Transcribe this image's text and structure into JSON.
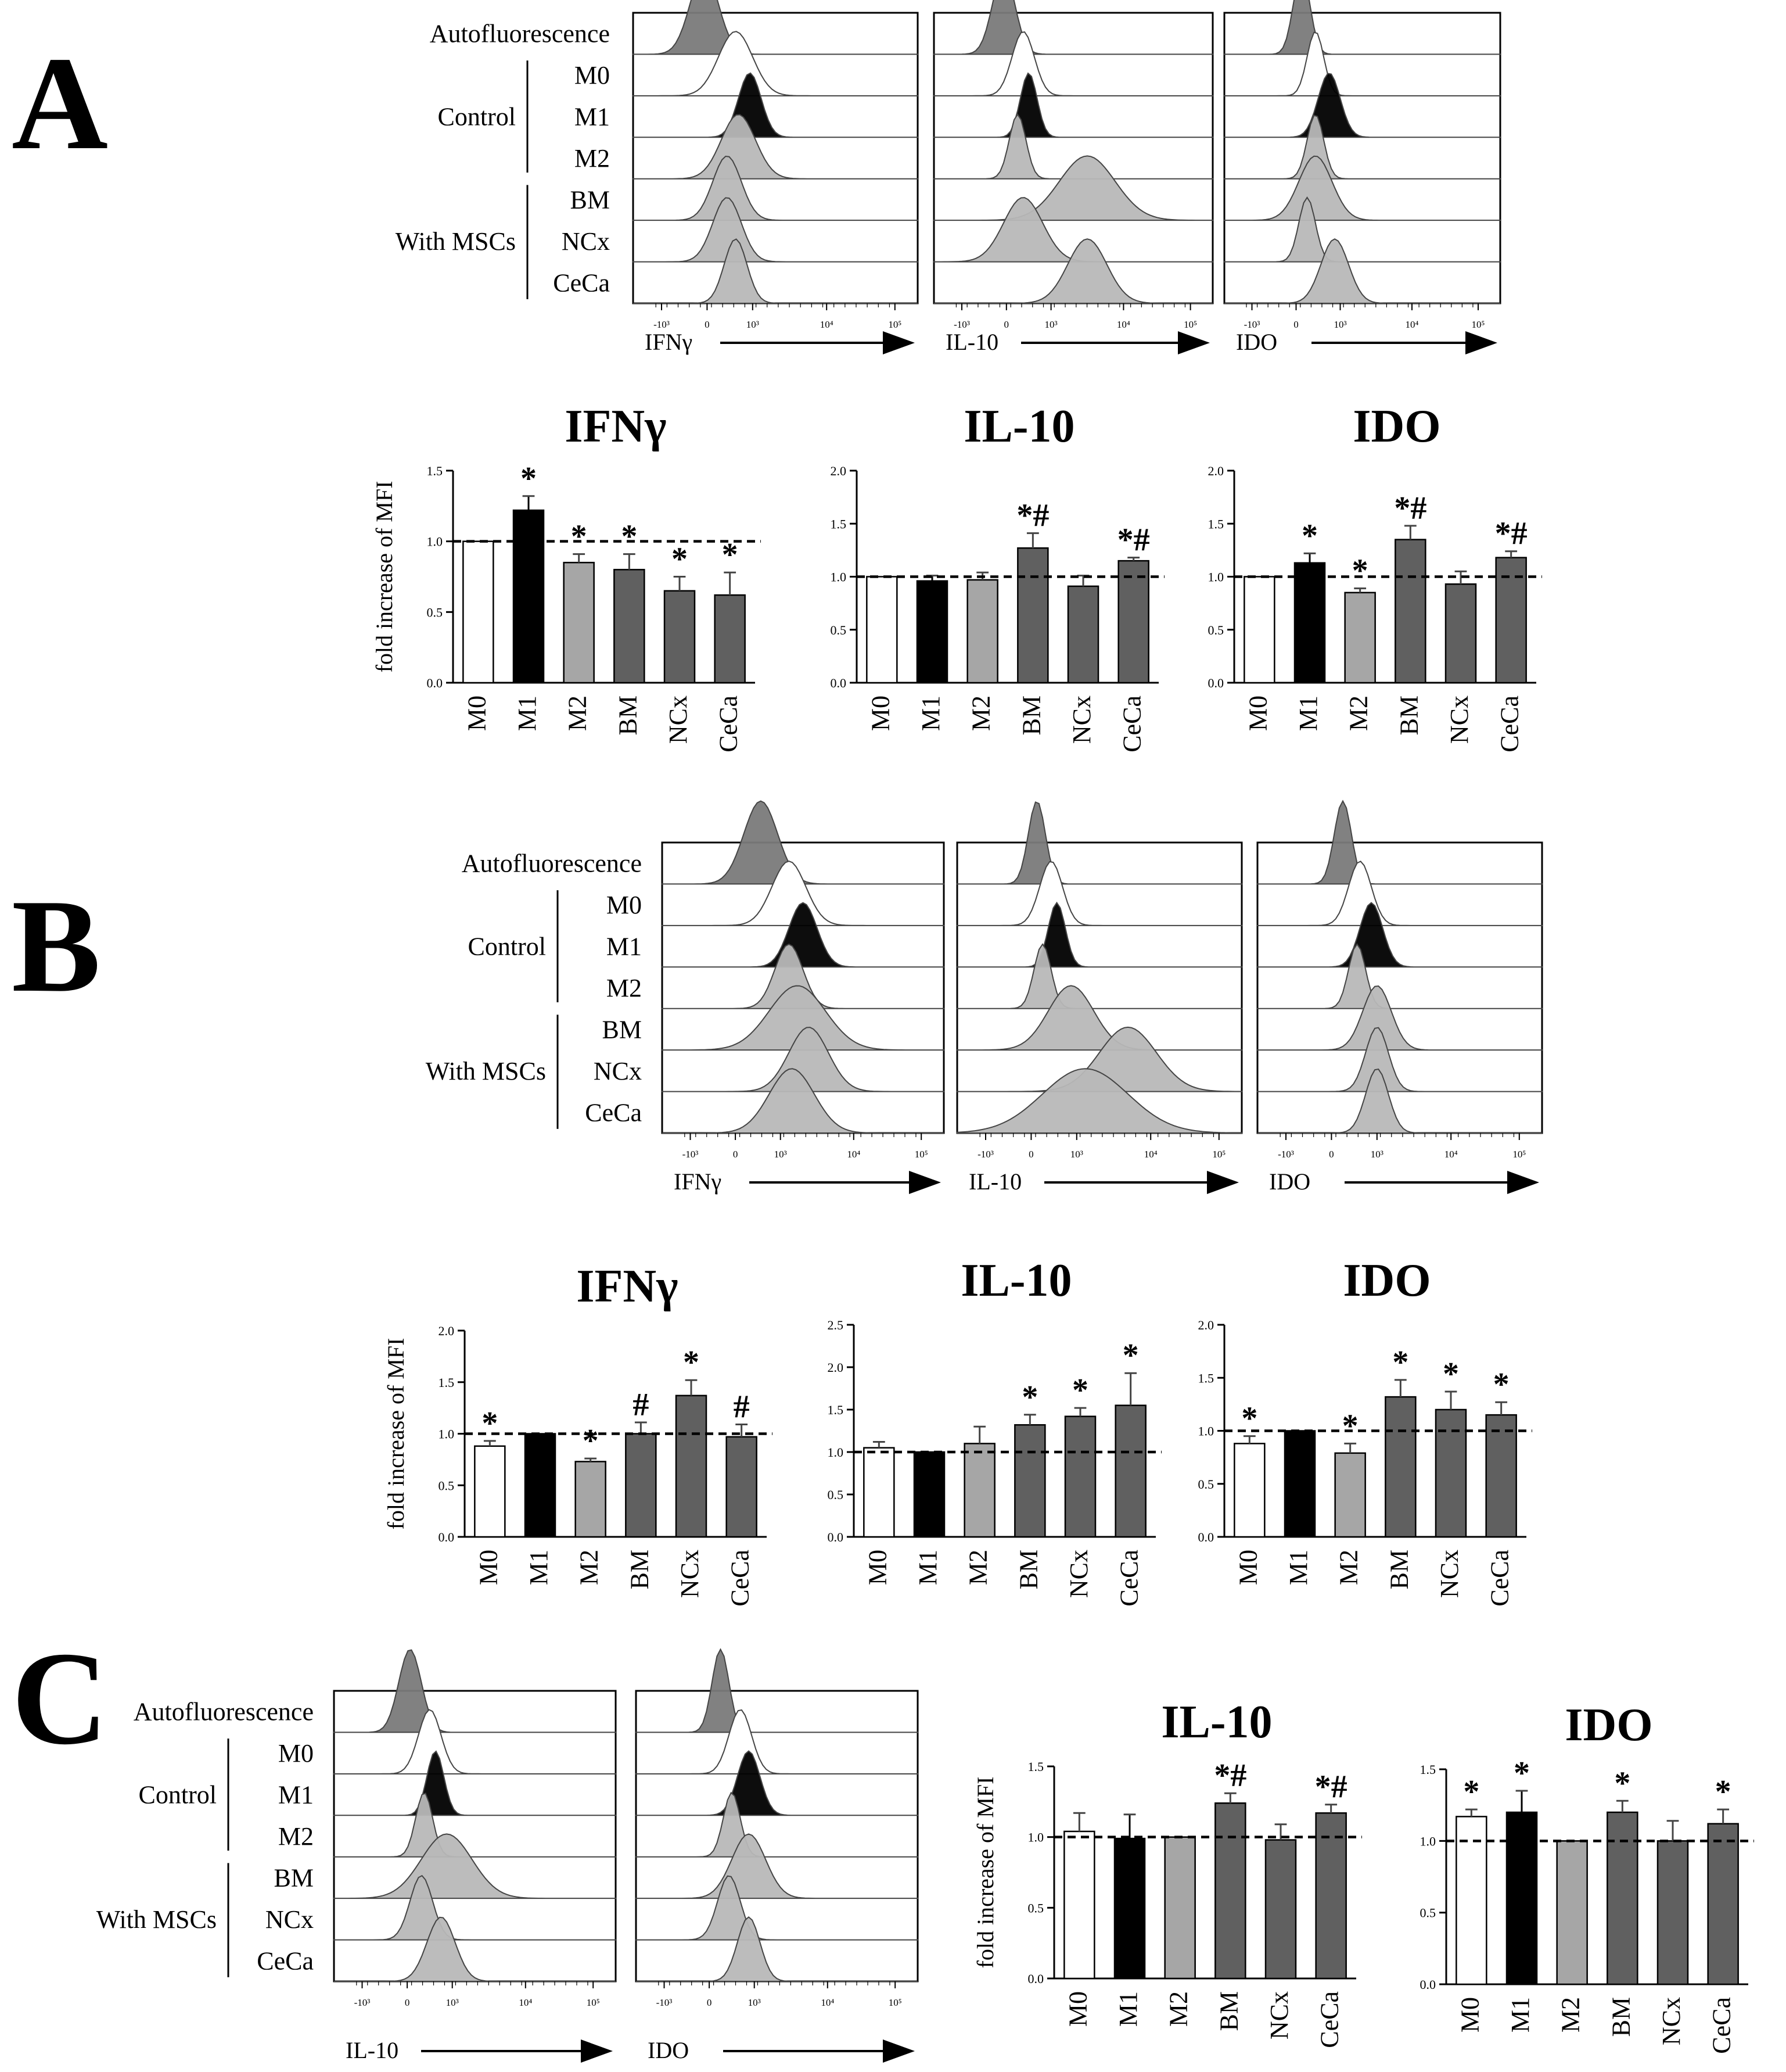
{
  "panels": [
    {
      "letter": "A",
      "hist_labels": {
        "autofluorescence": "Autofluorescence",
        "control_group": "Control",
        "msc_group": "With MSCs",
        "rows": [
          "M0",
          "M1",
          "M2",
          "BM",
          "NCx",
          "CeCa"
        ]
      },
      "histograms": [
        {
          "marker": "IFNγ",
          "peaks": [
            0.25,
            0.36,
            0.41,
            0.37,
            0.33,
            0.33,
            0.36
          ],
          "widths": [
            0.05,
            0.06,
            0.04,
            0.06,
            0.05,
            0.05,
            0.04
          ]
        },
        {
          "marker": "IL-10",
          "peaks": [
            0.25,
            0.32,
            0.34,
            0.3,
            0.55,
            0.32,
            0.55
          ],
          "widths": [
            0.04,
            0.04,
            0.03,
            0.03,
            0.1,
            0.07,
            0.07
          ]
        },
        {
          "marker": "IDO",
          "peaks": [
            0.28,
            0.33,
            0.38,
            0.33,
            0.33,
            0.3,
            0.4
          ],
          "widths": [
            0.03,
            0.03,
            0.04,
            0.03,
            0.06,
            0.03,
            0.05
          ]
        }
      ]
    },
    {
      "letter": "B",
      "hist_labels": {
        "autofluorescence": "Autofluorescence",
        "control_group": "Control",
        "msc_group": "With MSCs",
        "rows": [
          "M0",
          "M1",
          "M2",
          "BM",
          "NCx",
          "CeCa"
        ]
      },
      "histograms": [
        {
          "marker": "IFNγ",
          "peaks": [
            0.35,
            0.45,
            0.5,
            0.45,
            0.48,
            0.52,
            0.46
          ],
          "widths": [
            0.06,
            0.06,
            0.05,
            0.05,
            0.1,
            0.07,
            0.08
          ]
        },
        {
          "marker": "IL-10",
          "peaks": [
            0.28,
            0.33,
            0.35,
            0.3,
            0.4,
            0.6,
            0.45
          ],
          "widths": [
            0.03,
            0.04,
            0.03,
            0.03,
            0.08,
            0.1,
            0.15
          ]
        },
        {
          "marker": "IDO",
          "peaks": [
            0.3,
            0.36,
            0.4,
            0.35,
            0.42,
            0.42,
            0.42
          ],
          "widths": [
            0.03,
            0.04,
            0.04,
            0.03,
            0.05,
            0.04,
            0.04
          ]
        }
      ]
    },
    {
      "letter": "C",
      "hist_labels": {
        "autofluorescence": "Autofluorescence",
        "control_group": "Control",
        "msc_group": "With MSCs",
        "rows": [
          "M0",
          "M1",
          "M2",
          "BM",
          "NCx",
          "CeCa"
        ]
      },
      "histograms": [
        {
          "marker": "IL-10",
          "peaks": [
            0.27,
            0.34,
            0.36,
            0.32,
            0.4,
            0.31,
            0.38
          ],
          "widths": [
            0.04,
            0.04,
            0.03,
            0.03,
            0.09,
            0.04,
            0.05
          ]
        },
        {
          "marker": "IDO",
          "peaks": [
            0.3,
            0.37,
            0.4,
            0.34,
            0.4,
            0.33,
            0.4
          ],
          "widths": [
            0.03,
            0.04,
            0.04,
            0.03,
            0.06,
            0.04,
            0.04
          ]
        }
      ]
    }
  ],
  "axis_ticks": {
    "x": [
      "-10³",
      "0",
      "10³",
      "10⁴",
      "10⁵"
    ]
  },
  "colors": {
    "M0": "#ffffff",
    "M1": "#000000",
    "M2": "#a6a6a6",
    "MSC": "#606060",
    "autofluorescence": "#7a7a7a",
    "hist_light": "#b8b8b8"
  },
  "chart_data": [
    {
      "panel": "A",
      "type": "bar",
      "title": "IFNγ",
      "ylabel": "fold increase of MFI",
      "categories": [
        "M0",
        "M1",
        "M2",
        "BM",
        "NCx",
        "CeCa"
      ],
      "values": [
        1.0,
        1.22,
        0.85,
        0.8,
        0.65,
        0.62
      ],
      "errors": [
        0.0,
        0.1,
        0.06,
        0.11,
        0.1,
        0.16
      ],
      "annotations": [
        "",
        "*",
        "*",
        "*",
        "*",
        "*"
      ],
      "ylim": [
        0,
        1.5
      ],
      "yticks": [
        "0.0",
        "0.5",
        "1.0",
        "1.5"
      ],
      "reference_line": 1.0
    },
    {
      "panel": "A",
      "type": "bar",
      "title": "IL-10",
      "ylabel": "",
      "categories": [
        "M0",
        "M1",
        "M2",
        "BM",
        "NCx",
        "CeCa"
      ],
      "values": [
        1.0,
        0.96,
        0.97,
        1.27,
        0.91,
        1.15
      ],
      "errors": [
        0.0,
        0.05,
        0.07,
        0.14,
        0.1,
        0.03
      ],
      "annotations": [
        "",
        "",
        "",
        "*#",
        "",
        "*#"
      ],
      "ylim": [
        0,
        2.0
      ],
      "yticks": [
        "0.0",
        "0.5",
        "1.0",
        "1.5",
        "2.0"
      ],
      "reference_line": 1.0
    },
    {
      "panel": "A",
      "type": "bar",
      "title": "IDO",
      "ylabel": "",
      "categories": [
        "M0",
        "M1",
        "M2",
        "BM",
        "NCx",
        "CeCa"
      ],
      "values": [
        1.0,
        1.13,
        0.85,
        1.35,
        0.93,
        1.18
      ],
      "errors": [
        0.0,
        0.09,
        0.04,
        0.13,
        0.12,
        0.06
      ],
      "annotations": [
        "",
        "*",
        "*",
        "*#",
        "",
        "*#"
      ],
      "ylim": [
        0,
        2.0
      ],
      "yticks": [
        "0.0",
        "0.5",
        "1.0",
        "1.5",
        "2.0"
      ],
      "reference_line": 1.0
    },
    {
      "panel": "B",
      "type": "bar",
      "title": "IFNγ",
      "ylabel": "fold increase of MFI",
      "categories": [
        "M0",
        "M1",
        "M2",
        "BM",
        "NCx",
        "CeCa"
      ],
      "values": [
        0.88,
        1.0,
        0.73,
        1.0,
        1.37,
        0.97
      ],
      "errors": [
        0.05,
        0.0,
        0.03,
        0.11,
        0.15,
        0.12
      ],
      "annotations": [
        "*",
        "",
        "*",
        "#",
        "*",
        "#"
      ],
      "ylim": [
        0,
        2.0
      ],
      "yticks": [
        "0.0",
        "0.5",
        "1.0",
        "1.5",
        "2.0"
      ],
      "reference_line": 1.0
    },
    {
      "panel": "B",
      "type": "bar",
      "title": "IL-10",
      "ylabel": "",
      "categories": [
        "M0",
        "M1",
        "M2",
        "BM",
        "NCx",
        "CeCa"
      ],
      "values": [
        1.05,
        1.0,
        1.1,
        1.32,
        1.42,
        1.55
      ],
      "errors": [
        0.07,
        0.0,
        0.2,
        0.12,
        0.1,
        0.38
      ],
      "annotations": [
        "",
        "",
        "",
        "*",
        "*",
        "*"
      ],
      "ylim": [
        0,
        2.5
      ],
      "yticks": [
        "0.0",
        "0.5",
        "1.0",
        "1.5",
        "2.0",
        "2.5"
      ],
      "reference_line": 1.0
    },
    {
      "panel": "B",
      "type": "bar",
      "title": "IDO",
      "ylabel": "",
      "categories": [
        "M0",
        "M1",
        "M2",
        "BM",
        "NCx",
        "CeCa"
      ],
      "values": [
        0.88,
        1.0,
        0.79,
        1.32,
        1.2,
        1.15
      ],
      "errors": [
        0.07,
        0.0,
        0.09,
        0.16,
        0.17,
        0.12
      ],
      "annotations": [
        "*",
        "",
        "*",
        "*",
        "*",
        "*"
      ],
      "ylim": [
        0,
        2.0
      ],
      "yticks": [
        "0.0",
        "0.5",
        "1.0",
        "1.5",
        "2.0"
      ],
      "reference_line": 1.0
    },
    {
      "panel": "C",
      "type": "bar",
      "title": "IL-10",
      "ylabel": "fold increase of MFI",
      "categories": [
        "M0",
        "M1",
        "M2",
        "BM",
        "NCx",
        "CeCa"
      ],
      "values": [
        1.04,
        0.99,
        1.0,
        1.24,
        0.98,
        1.17
      ],
      "errors": [
        0.13,
        0.17,
        0.0,
        0.07,
        0.11,
        0.06
      ],
      "annotations": [
        "",
        "",
        "",
        "*#",
        "",
        "*#"
      ],
      "ylim": [
        0,
        1.5
      ],
      "yticks": [
        "0.0",
        "0.5",
        "1.0",
        "1.5"
      ],
      "reference_line": 1.0
    },
    {
      "panel": "C",
      "type": "bar",
      "title": "IDO",
      "ylabel": "",
      "categories": [
        "M0",
        "M1",
        "M2",
        "BM",
        "NCx",
        "CeCa"
      ],
      "values": [
        1.17,
        1.2,
        1.0,
        1.2,
        1.0,
        1.12
      ],
      "errors": [
        0.05,
        0.15,
        0.0,
        0.08,
        0.14,
        0.1
      ],
      "annotations": [
        "*",
        "*",
        "",
        "*",
        "",
        "*"
      ],
      "ylim": [
        0,
        1.5
      ],
      "yticks": [
        "0.0",
        "0.5",
        "1.0",
        "1.5"
      ],
      "reference_line": 1.0
    }
  ]
}
